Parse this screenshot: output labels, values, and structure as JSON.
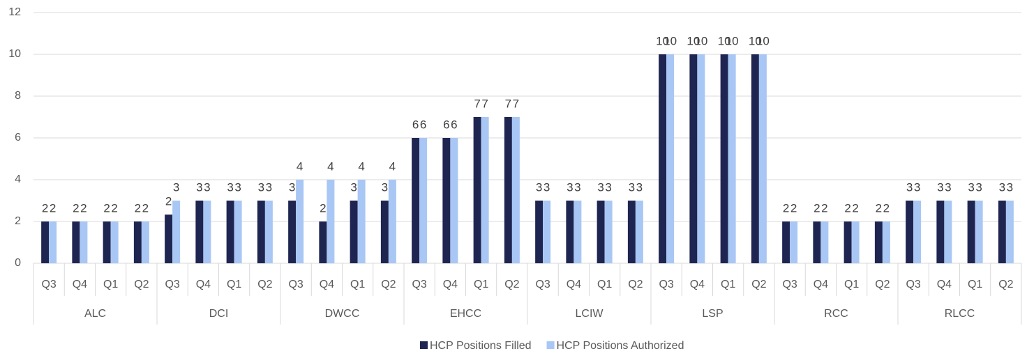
{
  "chart_data": {
    "type": "bar",
    "categories": [
      "Q3",
      "Q4",
      "Q1",
      "Q2",
      "Q3",
      "Q4",
      "Q1",
      "Q2",
      "Q3",
      "Q4",
      "Q1",
      "Q2",
      "Q3",
      "Q4",
      "Q1",
      "Q2",
      "Q3",
      "Q4",
      "Q1",
      "Q2",
      "Q3",
      "Q4",
      "Q1",
      "Q2",
      "Q3",
      "Q4",
      "Q1",
      "Q2",
      "Q3",
      "Q4",
      "Q1",
      "Q2"
    ],
    "groups": [
      "ALC",
      "DCI",
      "DWCC",
      "EHCC",
      "LCIW",
      "LSP",
      "RCC",
      "RLCC"
    ],
    "series": [
      {
        "name": "HCP Positions Filled",
        "color": "#1f2551",
        "values": [
          2,
          2,
          2,
          2,
          2.33,
          3,
          3,
          3,
          3,
          2,
          3,
          3,
          6,
          6,
          7,
          7,
          3,
          3,
          3,
          3,
          10,
          10,
          10,
          10,
          2,
          2,
          2,
          2,
          3,
          3,
          3,
          3
        ],
        "value_labels": [
          "2",
          "2",
          "2",
          "2",
          "2",
          "3",
          "3",
          "3",
          "3",
          "2",
          "3",
          "3",
          "6",
          "6",
          "7",
          "7",
          "3",
          "3",
          "3",
          "3",
          "10",
          "10",
          "10",
          "10",
          "2",
          "2",
          "2",
          "2",
          "3",
          "3",
          "3",
          "3"
        ]
      },
      {
        "name": "HCP Positions Authorized",
        "color": "#a9c7f4",
        "values": [
          2,
          2,
          2,
          2,
          3,
          3,
          3,
          3,
          4,
          4,
          4,
          4,
          6,
          6,
          7,
          7,
          3,
          3,
          3,
          3,
          10,
          10,
          10,
          10,
          2,
          2,
          2,
          2,
          3,
          3,
          3,
          3
        ]
      }
    ],
    "ylim": [
      0,
      12
    ],
    "yticks": [
      0,
      2,
      4,
      6,
      8,
      10,
      12
    ],
    "grid": true,
    "legend": "bottom"
  }
}
